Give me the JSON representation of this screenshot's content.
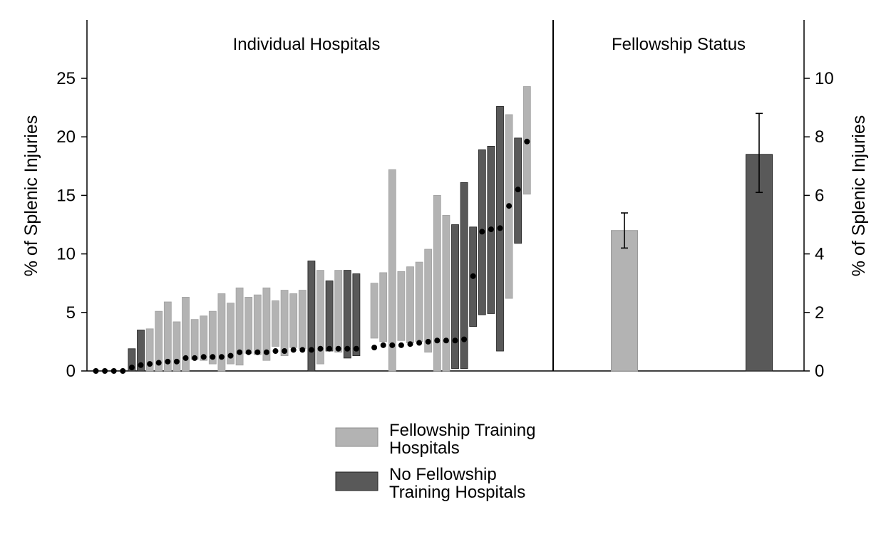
{
  "chart_data": [
    {
      "type": "bar",
      "subtype": "floating-range-with-points",
      "title": "Individual Hospitals",
      "ylabel": "% of Splenic Injuries",
      "ylim": [
        0,
        30
      ],
      "yticks": [
        0,
        5,
        10,
        15,
        20,
        25
      ],
      "grid": false,
      "series": [
        {
          "name": "Fellowship Training Hospitals",
          "color": "#b3b3b3",
          "points": [
            {
              "rank": 7,
              "low": 0.0,
              "high": 3.6,
              "point": 0.6
            },
            {
              "rank": 8,
              "low": 0.0,
              "high": 5.1,
              "point": 0.7
            },
            {
              "rank": 9,
              "low": 0.0,
              "high": 5.9,
              "point": 0.8
            },
            {
              "rank": 10,
              "low": 0.0,
              "high": 4.2,
              "point": 0.8
            },
            {
              "rank": 11,
              "low": 0.0,
              "high": 6.3,
              "point": 1.1
            },
            {
              "rank": 12,
              "low": 1.0,
              "high": 4.4,
              "point": 1.1
            },
            {
              "rank": 13,
              "low": 0.9,
              "high": 4.7,
              "point": 1.2
            },
            {
              "rank": 14,
              "low": 0.6,
              "high": 5.1,
              "point": 1.2
            },
            {
              "rank": 15,
              "low": 0.0,
              "high": 6.6,
              "point": 1.2
            },
            {
              "rank": 16,
              "low": 0.6,
              "high": 5.8,
              "point": 1.3
            },
            {
              "rank": 17,
              "low": 0.5,
              "high": 7.1,
              "point": 1.6
            },
            {
              "rank": 18,
              "low": 1.5,
              "high": 6.3,
              "point": 1.6
            },
            {
              "rank": 19,
              "low": 1.4,
              "high": 6.5,
              "point": 1.6
            },
            {
              "rank": 20,
              "low": 0.9,
              "high": 7.1,
              "point": 1.6
            },
            {
              "rank": 21,
              "low": 2.1,
              "high": 6.0,
              "point": 1.7
            },
            {
              "rank": 22,
              "low": 1.3,
              "high": 6.9,
              "point": 1.7
            },
            {
              "rank": 23,
              "low": 2.0,
              "high": 6.6,
              "point": 1.8
            },
            {
              "rank": 24,
              "low": 1.9,
              "high": 6.9,
              "point": 1.8
            },
            {
              "rank": 26,
              "low": 0.6,
              "high": 8.6,
              "point": 1.9
            },
            {
              "rank": 28,
              "low": 1.6,
              "high": 8.6,
              "point": 1.9
            },
            {
              "rank": 32,
              "low": 2.8,
              "high": 7.5,
              "point": 2.0
            },
            {
              "rank": 33,
              "low": 2.5,
              "high": 8.4,
              "point": 2.2
            },
            {
              "rank": 34,
              "low": 0.0,
              "high": 17.2,
              "point": 2.2
            },
            {
              "rank": 35,
              "low": 2.6,
              "high": 8.5,
              "point": 2.2
            },
            {
              "rank": 36,
              "low": 2.4,
              "high": 8.9,
              "point": 2.3
            },
            {
              "rank": 37,
              "low": 2.5,
              "high": 9.3,
              "point": 2.4
            },
            {
              "rank": 38,
              "low": 1.6,
              "high": 10.4,
              "point": 2.5
            },
            {
              "rank": 39,
              "low": 0.0,
              "high": 15.0,
              "point": 2.6
            },
            {
              "rank": 40,
              "low": 0.0,
              "high": 13.3,
              "point": 2.6
            },
            {
              "rank": 47,
              "low": 6.2,
              "high": 21.9,
              "point": 14.1
            },
            {
              "rank": 49,
              "low": 15.1,
              "high": 24.3,
              "point": 19.6
            }
          ]
        },
        {
          "name": "No Fellowship Training Hospitals",
          "color": "#595959",
          "points": [
            {
              "rank": 1,
              "low": 0.0,
              "high": 0.0,
              "point": 0.0
            },
            {
              "rank": 2,
              "low": 0.0,
              "high": 0.0,
              "point": 0.0
            },
            {
              "rank": 3,
              "low": 0.0,
              "high": 0.0,
              "point": 0.0
            },
            {
              "rank": 4,
              "low": 0.0,
              "high": 0.0,
              "point": 0.0
            },
            {
              "rank": 5,
              "low": 0.0,
              "high": 1.9,
              "point": 0.3
            },
            {
              "rank": 6,
              "low": 0.0,
              "high": 3.5,
              "point": 0.5
            },
            {
              "rank": 25,
              "low": 0.0,
              "high": 9.4,
              "point": 1.8
            },
            {
              "rank": 27,
              "low": 1.7,
              "high": 7.7,
              "point": 1.9
            },
            {
              "rank": 29,
              "low": 1.1,
              "high": 8.6,
              "point": 1.9
            },
            {
              "rank": 30,
              "low": 1.3,
              "high": 8.3,
              "point": 1.9
            },
            {
              "rank": 41,
              "low": 0.2,
              "high": 12.5,
              "point": 2.6
            },
            {
              "rank": 42,
              "low": 0.2,
              "high": 16.1,
              "point": 2.7
            },
            {
              "rank": 43,
              "low": 3.8,
              "high": 12.3,
              "point": 8.1
            },
            {
              "rank": 44,
              "low": 4.8,
              "high": 18.9,
              "point": 11.9
            },
            {
              "rank": 45,
              "low": 4.9,
              "high": 19.2,
              "point": 12.1
            },
            {
              "rank": 46,
              "low": 1.7,
              "high": 22.6,
              "point": 12.2
            },
            {
              "rank": 48,
              "low": 10.9,
              "high": 19.9,
              "point": 15.5
            }
          ]
        }
      ]
    },
    {
      "type": "bar",
      "subtype": "bar-with-error-bars",
      "title": "Fellowship Status",
      "ylabel": "% of Splenic Injuries",
      "ylim": [
        0,
        12
      ],
      "yticks": [
        0,
        2,
        4,
        6,
        8,
        10
      ],
      "grid": false,
      "categories": [
        "Fellowship Training Hospitals",
        "No Fellowship Training Hospitals"
      ],
      "values": [
        4.8,
        7.4
      ],
      "ci_low": [
        4.2,
        6.1
      ],
      "ci_high": [
        5.4,
        8.8
      ],
      "colors": [
        "#b3b3b3",
        "#595959"
      ]
    }
  ],
  "legend": {
    "placement": "bottom",
    "items": [
      {
        "line1": "Fellowship Training",
        "line2": "Hospitals",
        "color": "#b3b3b3"
      },
      {
        "line1": "No Fellowship",
        "line2": "Training Hospitals",
        "color": "#595959"
      }
    ]
  }
}
